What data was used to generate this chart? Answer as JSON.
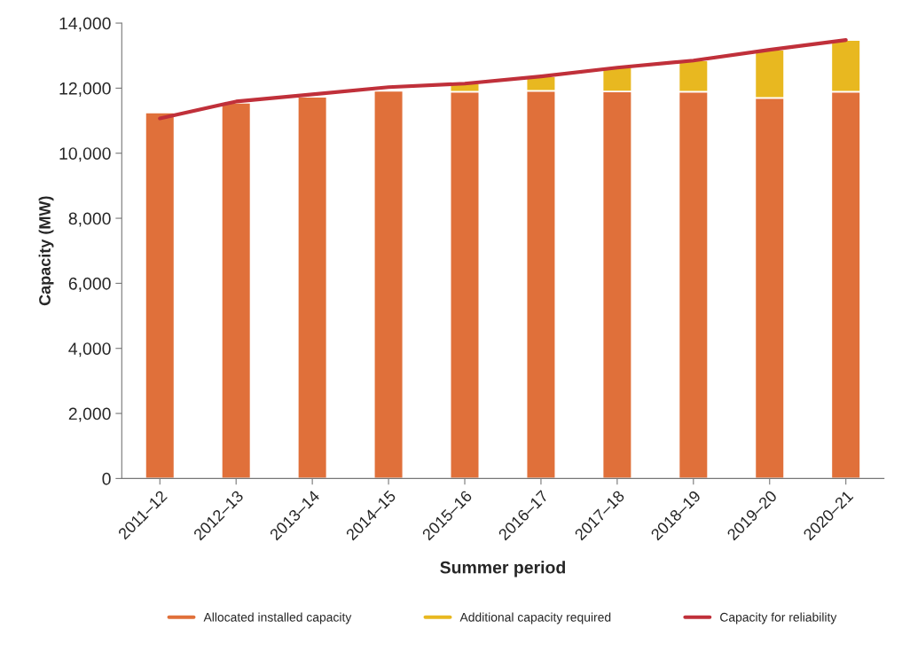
{
  "chart_data": {
    "type": "bar",
    "stacked": true,
    "xlabel": "Summer period",
    "ylabel": "Capacity (MW)",
    "categories": [
      "2011–12",
      "2012–13",
      "2013–14",
      "2014–15",
      "2015–16",
      "2016–17",
      "2017–18",
      "2018–19",
      "2019–20",
      "2020–21"
    ],
    "series": [
      {
        "name": "Allocated installed capacity",
        "color": "#e0703a",
        "values": [
          11250,
          11550,
          11730,
          11920,
          11890,
          11920,
          11900,
          11890,
          11700,
          11890
        ]
      },
      {
        "name": "Additional capacity required",
        "color": "#e8b820",
        "values": [
          null,
          null,
          null,
          null,
          250,
          440,
          730,
          960,
          1480,
          1590
        ]
      },
      {
        "name": "Capacity for reliability",
        "color": "#c0303a",
        "type": "line",
        "values": [
          11070,
          11590,
          11810,
          12030,
          12140,
          12360,
          12630,
          12850,
          13180,
          13480
        ]
      }
    ],
    "ylim": [
      0,
      14000
    ],
    "yticks": [
      {
        "value": 0,
        "label": "0"
      },
      {
        "value": 2000,
        "label": "2,000"
      },
      {
        "value": 4000,
        "label": "4,000"
      },
      {
        "value": 6000,
        "label": "6,000"
      },
      {
        "value": 8000,
        "label": "8,000"
      },
      {
        "value": 10000,
        "label": "10,000"
      },
      {
        "value": 12000,
        "label": "12,000"
      },
      {
        "value": 14000,
        "label": "14,000"
      }
    ],
    "grid": false,
    "legend": "bottom"
  }
}
